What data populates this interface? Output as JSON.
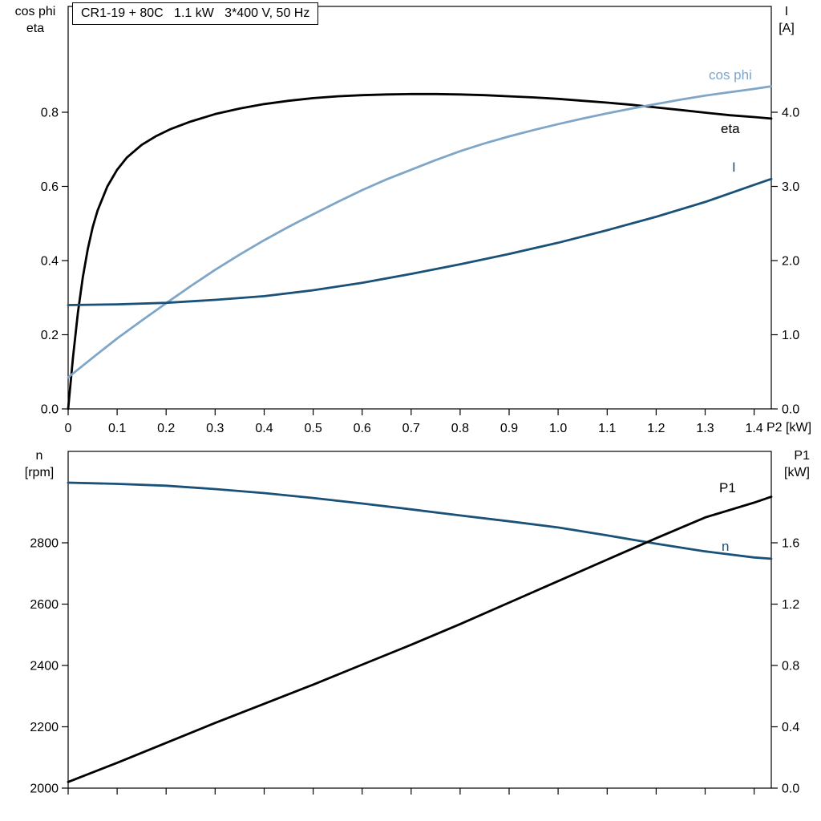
{
  "chart_data": [
    {
      "id": "top",
      "type": "line",
      "title": "CR1-19 + 80C   1.1 kW   3*400 V, 50 Hz",
      "x_axis": {
        "label": "P2 [kW]",
        "min": 0,
        "max": 1.435,
        "ticks": [
          "0",
          "0.1",
          "0.2",
          "0.3",
          "0.4",
          "0.5",
          "0.6",
          "0.7",
          "0.8",
          "0.9",
          "1.0",
          "1.1",
          "1.2",
          "1.3",
          "1.4"
        ],
        "show_tick_labels": true
      },
      "left_axis": {
        "label_lines": [
          "cos phi",
          "eta"
        ],
        "min": 0,
        "max": 1.0854,
        "ticks": [
          "0.0",
          "0.2",
          "0.4",
          "0.6",
          "0.8"
        ]
      },
      "right_axis": {
        "label_lines": [
          "I",
          "[A]"
        ],
        "min": 0,
        "max": 5.427,
        "ticks": [
          "0.0",
          "1.0",
          "2.0",
          "3.0",
          "4.0"
        ]
      },
      "series": [
        {
          "key": "eta",
          "name": "eta",
          "axis": "left",
          "color": "#000000",
          "x": [
            0,
            0.01,
            0.02,
            0.03,
            0.04,
            0.05,
            0.06,
            0.08,
            0.1,
            0.12,
            0.15,
            0.18,
            0.21,
            0.25,
            0.3,
            0.35,
            0.4,
            0.45,
            0.5,
            0.55,
            0.6,
            0.65,
            0.7,
            0.75,
            0.8,
            0.85,
            0.9,
            0.95,
            1.0,
            1.05,
            1.1,
            1.15,
            1.2,
            1.25,
            1.3,
            1.35,
            1.4,
            1.435
          ],
          "y": [
            0,
            0.14,
            0.26,
            0.355,
            0.43,
            0.49,
            0.535,
            0.6,
            0.645,
            0.678,
            0.712,
            0.736,
            0.755,
            0.775,
            0.795,
            0.81,
            0.822,
            0.831,
            0.838,
            0.843,
            0.846,
            0.848,
            0.849,
            0.849,
            0.848,
            0.846,
            0.843,
            0.84,
            0.836,
            0.831,
            0.826,
            0.82,
            0.813,
            0.806,
            0.799,
            0.792,
            0.787,
            0.783
          ]
        },
        {
          "key": "cos-phi",
          "name": "cos phi",
          "axis": "left",
          "color": "#7fa6c7",
          "x": [
            0,
            0.05,
            0.1,
            0.15,
            0.2,
            0.25,
            0.3,
            0.35,
            0.4,
            0.45,
            0.5,
            0.55,
            0.6,
            0.65,
            0.7,
            0.75,
            0.8,
            0.85,
            0.9,
            0.95,
            1.0,
            1.05,
            1.1,
            1.15,
            1.2,
            1.25,
            1.3,
            1.35,
            1.4,
            1.435
          ],
          "y": [
            0.085,
            0.138,
            0.19,
            0.238,
            0.285,
            0.331,
            0.375,
            0.416,
            0.455,
            0.491,
            0.525,
            0.558,
            0.59,
            0.619,
            0.645,
            0.671,
            0.695,
            0.716,
            0.735,
            0.752,
            0.768,
            0.783,
            0.797,
            0.81,
            0.822,
            0.834,
            0.845,
            0.854,
            0.863,
            0.87
          ]
        },
        {
          "key": "current",
          "name": "I",
          "axis": "right",
          "color": "#1a5179",
          "x": [
            0,
            0.1,
            0.2,
            0.3,
            0.4,
            0.5,
            0.6,
            0.7,
            0.8,
            0.9,
            1.0,
            1.1,
            1.2,
            1.3,
            1.4,
            1.435
          ],
          "y": [
            1.4,
            1.41,
            1.43,
            1.47,
            1.52,
            1.6,
            1.7,
            1.82,
            1.95,
            2.09,
            2.24,
            2.41,
            2.59,
            2.79,
            3.02,
            3.1
          ]
        }
      ]
    },
    {
      "id": "bottom",
      "type": "line",
      "title": "",
      "x_axis": {
        "label": "",
        "min": 0,
        "max": 1.435,
        "ticks": [
          "0",
          "0.1",
          "0.2",
          "0.3",
          "0.4",
          "0.5",
          "0.6",
          "0.7",
          "0.8",
          "0.9",
          "1.0",
          "1.1",
          "1.2",
          "1.3",
          "1.4"
        ],
        "show_tick_labels": false
      },
      "left_axis": {
        "label_lines": [
          "n",
          "[rpm]"
        ],
        "min": 2000,
        "max": 3098,
        "ticks": [
          "2000",
          "2200",
          "2400",
          "2600",
          "2800"
        ]
      },
      "right_axis": {
        "label_lines": [
          "P1",
          "[kW]"
        ],
        "min": 0,
        "max": 2.196,
        "ticks": [
          "0.0",
          "0.4",
          "0.8",
          "1.2",
          "1.6"
        ]
      },
      "series": [
        {
          "key": "n",
          "name": "n",
          "axis": "left",
          "color": "#1a5179",
          "x": [
            0,
            0.1,
            0.2,
            0.3,
            0.4,
            0.5,
            0.6,
            0.7,
            0.8,
            0.9,
            1.0,
            1.1,
            1.2,
            1.3,
            1.4,
            1.435
          ],
          "y": [
            2996,
            2992,
            2986,
            2975,
            2962,
            2946,
            2928,
            2909,
            2889,
            2870,
            2850,
            2824,
            2797,
            2772,
            2752,
            2748
          ]
        },
        {
          "key": "p1",
          "name": "P1",
          "axis": "right",
          "color": "#000000",
          "x": [
            0,
            0.1,
            0.2,
            0.3,
            0.4,
            0.5,
            0.6,
            0.7,
            0.8,
            0.9,
            1.0,
            1.1,
            1.2,
            1.3,
            1.4,
            1.435
          ],
          "y": [
            0.04,
            0.165,
            0.295,
            0.425,
            0.55,
            0.675,
            0.805,
            0.935,
            1.07,
            1.21,
            1.35,
            1.49,
            1.63,
            1.765,
            1.862,
            1.9
          ]
        }
      ]
    }
  ]
}
